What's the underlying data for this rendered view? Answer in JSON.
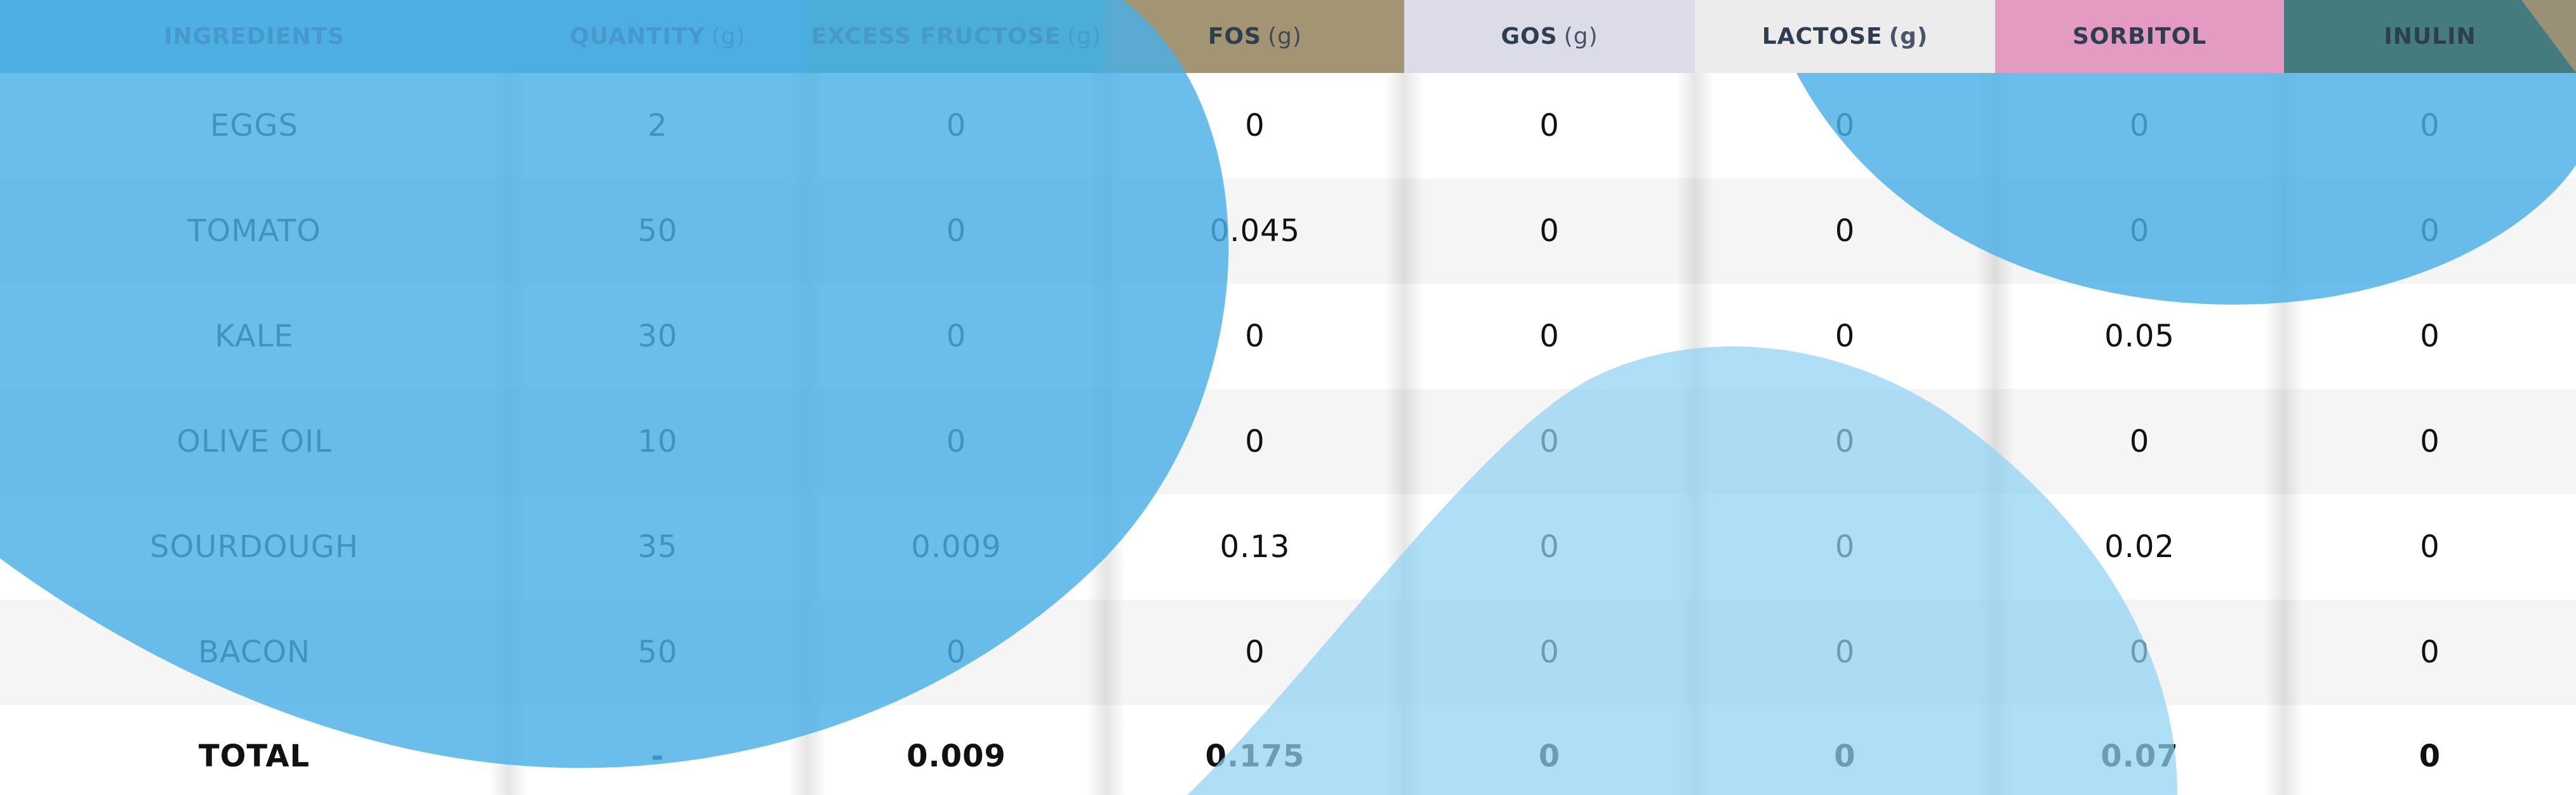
{
  "table": {
    "columns": [
      {
        "label": "INGREDIENTS",
        "unit": "",
        "color": "#5fb3df"
      },
      {
        "label": "QUANTITY",
        "unit": "(g)",
        "color": "#5aabd6"
      },
      {
        "label": "EXCESS FRUCTOSE",
        "unit": "(g)",
        "color": "#4fab9a"
      },
      {
        "label": "FOS",
        "unit": "(g)",
        "color": "#a39474"
      },
      {
        "label": "GOS",
        "unit": "(g)",
        "color": "#dcdce8"
      },
      {
        "label": "LACTOSE",
        "unit": "(g)",
        "color": "#ececec"
      },
      {
        "label": "SORBITOL",
        "unit": "",
        "color": "#e49bc2"
      },
      {
        "label": "INULIN",
        "unit": "",
        "color": "#437b7e"
      }
    ],
    "rows": [
      [
        "EGGS",
        "2",
        "0",
        "0",
        "0",
        "0",
        "0",
        "0"
      ],
      [
        "TOMATO",
        "50",
        "0",
        "0.045",
        "0",
        "0",
        "0",
        "0"
      ],
      [
        "KALE",
        "30",
        "0",
        "0",
        "0",
        "0",
        "0.05",
        "0"
      ],
      [
        "OLIVE OIL",
        "10",
        "0",
        "0",
        "0",
        "0",
        "0",
        "0"
      ],
      [
        "SOURDOUGH",
        "35",
        "0.009",
        "0.13",
        "0",
        "0",
        "0.02",
        "0"
      ],
      [
        "BACON",
        "50",
        "0",
        "0",
        "0",
        "0",
        "0",
        "0"
      ]
    ],
    "total": [
      "TOTAL",
      "-",
      "0.009",
      "0.175",
      "0",
      "0",
      "0.07",
      "0"
    ]
  },
  "colors": {
    "row_alt": "#f5f5f5",
    "blob_primary": "#4aaee6",
    "blob_light": "#8fd3f4"
  }
}
